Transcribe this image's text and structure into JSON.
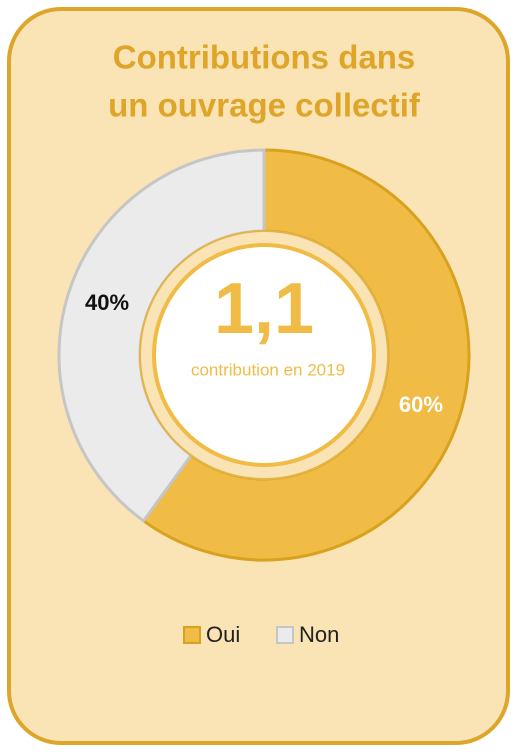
{
  "chart_data": {
    "type": "donut",
    "title": [
      "Contributions dans",
      "un ouvrage collectif"
    ],
    "annotations": [
      "1,1",
      "contribution en 2019"
    ],
    "categories": [
      "Oui",
      "Non"
    ],
    "values": [
      60,
      40
    ],
    "value_labels": [
      "60%",
      "40%"
    ],
    "colors": [
      "#f0bc45",
      "#ebebeb"
    ],
    "legend": "bottom"
  }
}
